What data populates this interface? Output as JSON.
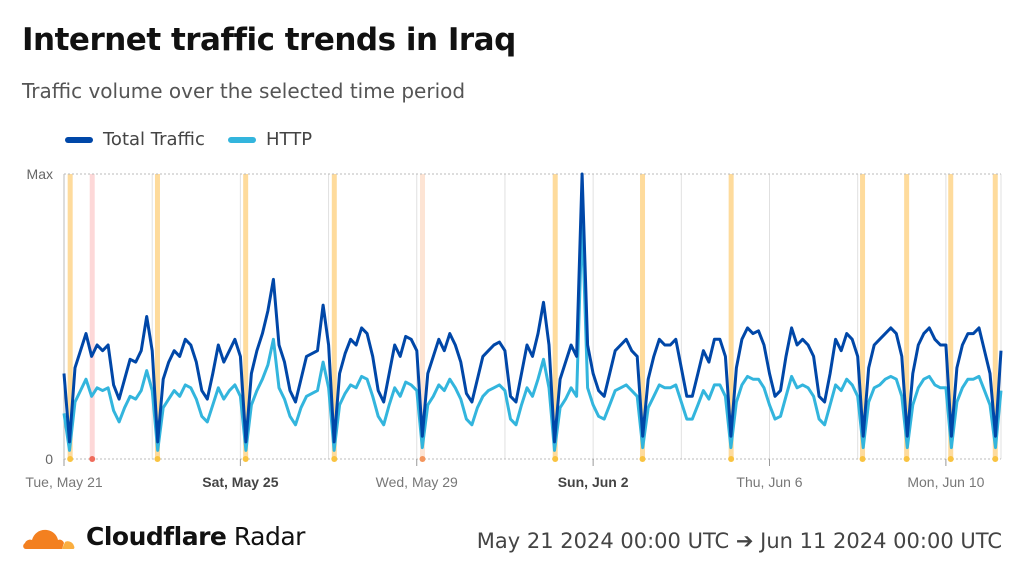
{
  "header": {
    "title": "Internet traffic trends in Iraq",
    "subtitle": "Traffic volume over the selected time period"
  },
  "footer": {
    "brand_bold": "Cloudflare",
    "brand_light": " Radar",
    "date_range": "May 21 2024 00:00 UTC ➔ Jun 11 2024 00:00 UTC"
  },
  "chart_data": {
    "type": "line",
    "title": "Internet traffic trends in Iraq",
    "xlabel": "",
    "ylabel": "",
    "x_start": "2024-05-21T00:00Z",
    "step_hours": 3,
    "xlim_days": [
      0,
      21.25
    ],
    "ylim": [
      0,
      100
    ],
    "yticks": [
      {
        "value": 0,
        "label": "0"
      },
      {
        "value": 100,
        "label": "Max"
      }
    ],
    "xticks": [
      {
        "day": 0,
        "label": "Tue, May 21",
        "bold": false
      },
      {
        "day": 4,
        "label": "Sat, May 25",
        "bold": true
      },
      {
        "day": 8,
        "label": "Wed, May 29",
        "bold": false
      },
      {
        "day": 12,
        "label": "Sun, Jun 2",
        "bold": true
      },
      {
        "day": 16,
        "label": "Thu, Jun 6",
        "bold": false
      },
      {
        "day": 20,
        "label": "Mon, Jun 10",
        "bold": false
      }
    ],
    "grid_days": [
      0,
      2,
      4,
      6,
      8,
      10,
      12,
      14,
      16,
      18,
      20
    ],
    "legend": "top-left",
    "series": [
      {
        "name": "Total Traffic",
        "color": "#0047a8",
        "values": [
          30,
          6,
          32,
          38,
          44,
          36,
          40,
          38,
          40,
          26,
          21,
          28,
          35,
          34,
          38,
          50,
          38,
          6,
          28,
          34,
          38,
          36,
          42,
          40,
          34,
          24,
          21,
          30,
          40,
          34,
          38,
          42,
          36,
          6,
          30,
          38,
          44,
          52,
          63,
          40,
          34,
          24,
          20,
          28,
          36,
          37,
          38,
          54,
          40,
          6,
          30,
          37,
          42,
          40,
          46,
          44,
          36,
          24,
          20,
          30,
          40,
          36,
          43,
          42,
          38,
          8,
          30,
          36,
          42,
          38,
          44,
          40,
          34,
          23,
          20,
          28,
          36,
          38,
          40,
          41,
          38,
          22,
          20,
          30,
          40,
          36,
          44,
          55,
          40,
          6,
          28,
          34,
          40,
          36,
          100,
          40,
          30,
          24,
          22,
          30,
          38,
          40,
          42,
          38,
          36,
          8,
          28,
          36,
          42,
          40,
          40,
          42,
          32,
          22,
          22,
          30,
          38,
          34,
          42,
          42,
          36,
          8,
          32,
          42,
          46,
          44,
          45,
          40,
          30,
          22,
          24,
          36,
          46,
          40,
          42,
          40,
          36,
          22,
          20,
          30,
          42,
          38,
          44,
          42,
          36,
          8,
          32,
          40,
          42,
          44,
          46,
          44,
          36,
          8,
          30,
          40,
          44,
          46,
          42,
          40,
          40,
          8,
          32,
          40,
          44,
          44,
          46,
          38,
          30,
          8,
          38
        ]
      },
      {
        "name": "HTTP",
        "color": "#33b5dd",
        "values": [
          16,
          3,
          20,
          24,
          28,
          22,
          25,
          24,
          25,
          17,
          13,
          18,
          22,
          21,
          24,
          31,
          24,
          3,
          18,
          21,
          24,
          22,
          26,
          25,
          21,
          15,
          13,
          19,
          25,
          21,
          24,
          26,
          22,
          3,
          19,
          24,
          28,
          33,
          42,
          25,
          21,
          15,
          12,
          18,
          22,
          23,
          24,
          34,
          25,
          3,
          19,
          23,
          26,
          25,
          29,
          28,
          22,
          15,
          12,
          19,
          25,
          22,
          27,
          26,
          24,
          4,
          19,
          22,
          26,
          24,
          28,
          25,
          21,
          14,
          12,
          18,
          22,
          24,
          25,
          26,
          24,
          14,
          12,
          19,
          25,
          22,
          28,
          35,
          25,
          3,
          18,
          21,
          25,
          22,
          85,
          25,
          19,
          15,
          14,
          19,
          24,
          25,
          26,
          24,
          22,
          4,
          18,
          22,
          26,
          25,
          25,
          26,
          20,
          14,
          14,
          19,
          24,
          21,
          26,
          26,
          22,
          4,
          20,
          26,
          29,
          28,
          28,
          25,
          19,
          14,
          15,
          22,
          29,
          25,
          26,
          25,
          22,
          14,
          12,
          19,
          26,
          24,
          28,
          26,
          22,
          4,
          20,
          25,
          26,
          28,
          29,
          28,
          22,
          4,
          19,
          25,
          28,
          29,
          26,
          25,
          25,
          4,
          20,
          25,
          28,
          28,
          29,
          24,
          19,
          4,
          24
        ]
      }
    ],
    "annotations": [
      {
        "day": 0.14,
        "type": "outage",
        "band": "#fedb9c",
        "dot": "#f9c340"
      },
      {
        "day": 0.64,
        "type": "disruption",
        "band": "#fdd8d8",
        "dot": "#ef6b5b"
      },
      {
        "day": 2.12,
        "type": "outage",
        "band": "#fedb9c",
        "dot": "#f9c340"
      },
      {
        "day": 4.12,
        "type": "outage",
        "band": "#fedb9c",
        "dot": "#f9c340"
      },
      {
        "day": 6.13,
        "type": "outage",
        "band": "#fedb9c",
        "dot": "#f9c340"
      },
      {
        "day": 8.13,
        "type": "other",
        "band": "#fde4d4",
        "dot": "#f4955c"
      },
      {
        "day": 11.14,
        "type": "outage",
        "band": "#fedb9c",
        "dot": "#f9c340"
      },
      {
        "day": 13.12,
        "type": "outage",
        "band": "#fedb9c",
        "dot": "#f9c340"
      },
      {
        "day": 15.13,
        "type": "outage",
        "band": "#fedb9c",
        "dot": "#f9c340"
      },
      {
        "day": 18.11,
        "type": "outage",
        "band": "#fedb9c",
        "dot": "#f9c340"
      },
      {
        "day": 19.11,
        "type": "outage",
        "band": "#fedb9c",
        "dot": "#f9c340"
      },
      {
        "day": 20.11,
        "type": "outage",
        "band": "#fedb9c",
        "dot": "#f9c340"
      },
      {
        "day": 21.12,
        "type": "outage",
        "band": "#fedb9c",
        "dot": "#f9c340"
      }
    ]
  }
}
